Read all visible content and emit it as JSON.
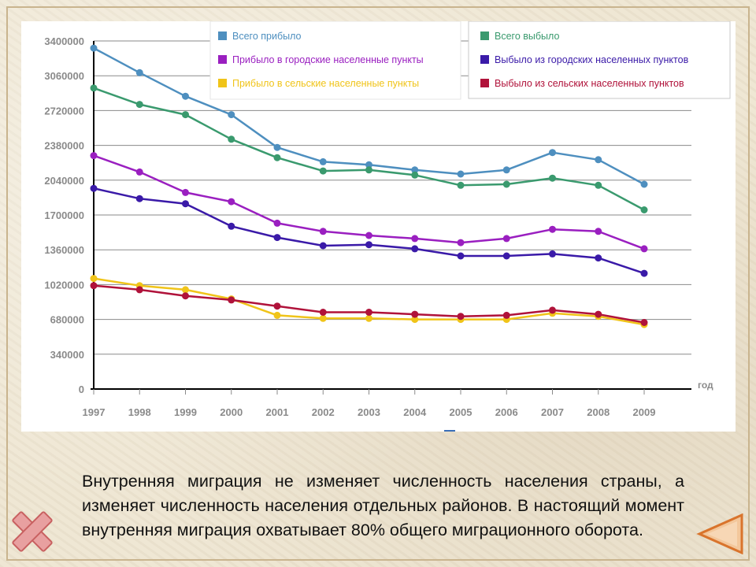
{
  "colors": {
    "total_in": "#4e8fbf",
    "total_out": "#3a9a6e",
    "urban_in": "#9a1fc0",
    "urban_out": "#3a1aa8",
    "rural_in": "#f0c419",
    "rural_out": "#b0123a",
    "grid": "#8a8a8a",
    "axis_text": "#8a8a8a",
    "legend_text_in": "#4e8fbf",
    "legend_text_out": "#3a9a6e"
  },
  "chart_data": {
    "type": "line",
    "x": [
      "1997",
      "1998",
      "1999",
      "2000",
      "2001",
      "2002",
      "2003",
      "2004",
      "2005",
      "2006",
      "2007",
      "2008",
      "2009"
    ],
    "xlabel": "год",
    "ylabel": "",
    "ylim": [
      0,
      3400000
    ],
    "yticks": [
      "0",
      "340000",
      "680000",
      "1020000",
      "1360000",
      "1700000",
      "2040000",
      "2380000",
      "2720000",
      "3060000",
      "3400000"
    ],
    "grid": true,
    "legend_position": "top",
    "series": [
      {
        "name": "Всего прибыло",
        "color_key": "total_in",
        "values": [
          3330000,
          3090000,
          2860000,
          2680000,
          2360000,
          2220000,
          2190000,
          2140000,
          2100000,
          2140000,
          2310000,
          2240000,
          2000000
        ]
      },
      {
        "name": "Всего выбыло",
        "color_key": "total_out",
        "values": [
          2940000,
          2780000,
          2680000,
          2440000,
          2260000,
          2130000,
          2140000,
          2090000,
          1990000,
          2000000,
          2060000,
          1990000,
          1750000
        ]
      },
      {
        "name": "Прибыло в городские населенные пункты",
        "color_key": "urban_in",
        "values": [
          2280000,
          2120000,
          1920000,
          1830000,
          1620000,
          1540000,
          1500000,
          1470000,
          1430000,
          1470000,
          1560000,
          1540000,
          1370000
        ]
      },
      {
        "name": "Выбыло из городских населенных пунктов",
        "color_key": "urban_out",
        "values": [
          1960000,
          1860000,
          1810000,
          1590000,
          1480000,
          1400000,
          1410000,
          1370000,
          1300000,
          1300000,
          1320000,
          1280000,
          1130000
        ]
      },
      {
        "name": "Прибыло в сельские населенные пункты",
        "color_key": "rural_in",
        "values": [
          1080000,
          1010000,
          970000,
          880000,
          720000,
          690000,
          690000,
          680000,
          680000,
          680000,
          740000,
          710000,
          630000
        ]
      },
      {
        "name": "Выбыло из сельских населенных пунктов",
        "color_key": "rural_out",
        "values": [
          1010000,
          970000,
          910000,
          870000,
          810000,
          750000,
          750000,
          730000,
          710000,
          720000,
          770000,
          730000,
          650000
        ]
      }
    ]
  },
  "legend": {
    "left": [
      "Всего прибыло",
      "Прибыло в городские населенные пункты",
      "Прибыло в сельские населенные пункты"
    ],
    "right": [
      "Всего выбыло",
      "Выбыло из городских населенных пунктов",
      "Выбыло из сельских населенных пунктов"
    ]
  },
  "text": {
    "body": "Внутренняя миграция не изменяет численность населения страны, а изменяет численность населения отдельных районов. В настоящий момент внутренняя миграция охватывает 80% общего миграционного оборота."
  },
  "icons": {
    "close": "close-x-icon",
    "back": "triangle-back-icon"
  }
}
